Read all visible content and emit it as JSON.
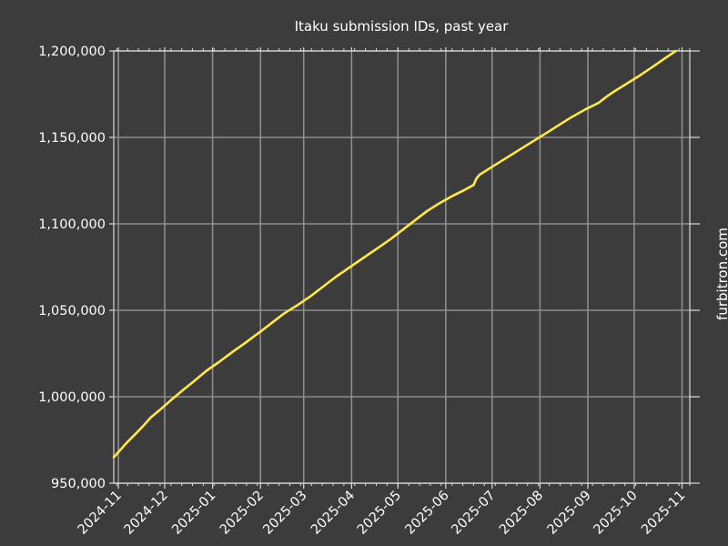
{
  "chart_data": {
    "type": "line",
    "title": "Itaku submission IDs, past year",
    "xlabel": "",
    "ylabel": "",
    "side_text": "furbitron.com",
    "x_ticks": [
      "2024-11",
      "2024-12",
      "2025-01",
      "2025-02",
      "2025-03",
      "2025-04",
      "2025-05",
      "2025-06",
      "2025-07",
      "2025-08",
      "2025-09",
      "2025-10",
      "2025-11"
    ],
    "xlim": [
      "2024-10-29",
      "2025-11-06"
    ],
    "y_ticks": [
      "950,000",
      "1,000,000",
      "1,050,000",
      "1,100,000",
      "1,150,000",
      "1,200,000"
    ],
    "ylim": [
      950000,
      1200000
    ],
    "grid": true,
    "colors": {
      "background": "#3c3c3c",
      "line": "#ffe84a",
      "grid": "#8c8c8c",
      "text": "#ffffff"
    },
    "series": [
      {
        "x": [
          "2024-10-29",
          "2024-11-03",
          "2024-11-07",
          "2024-11-12",
          "2024-11-17",
          "2024-11-22",
          "2024-11-28",
          "2024-12-05",
          "2024-12-13",
          "2024-12-20",
          "2024-12-28",
          "2025-01-05",
          "2025-01-14",
          "2025-01-22",
          "2025-01-31",
          "2025-02-08",
          "2025-02-16",
          "2025-02-25",
          "2025-03-06",
          "2025-03-14",
          "2025-03-22",
          "2025-03-31",
          "2025-04-09",
          "2025-04-18",
          "2025-04-26",
          "2025-05-04",
          "2025-05-12",
          "2025-05-20",
          "2025-05-28",
          "2025-06-05",
          "2025-06-13",
          "2025-06-19",
          "2025-06-21",
          "2025-06-23",
          "2025-07-01",
          "2025-07-09",
          "2025-07-18",
          "2025-07-27",
          "2025-08-05",
          "2025-08-13",
          "2025-08-21",
          "2025-08-30",
          "2025-09-08",
          "2025-09-13",
          "2025-09-18",
          "2025-09-26",
          "2025-10-05",
          "2025-10-14",
          "2025-10-23",
          "2025-10-28"
        ],
        "y": [
          965000,
          970000,
          974000,
          978500,
          983000,
          988000,
          992500,
          998000,
          1004000,
          1009000,
          1015000,
          1020000,
          1026000,
          1031000,
          1037000,
          1042500,
          1048000,
          1053000,
          1058500,
          1064000,
          1069500,
          1075000,
          1080500,
          1086000,
          1091000,
          1096500,
          1102000,
          1107500,
          1112000,
          1116000,
          1119500,
          1122500,
          1126500,
          1128500,
          1133000,
          1137500,
          1142500,
          1147500,
          1152500,
          1157000,
          1161500,
          1166000,
          1170000,
          1173500,
          1176500,
          1181000,
          1186000,
          1191500,
          1197000,
          1200000
        ]
      }
    ]
  }
}
